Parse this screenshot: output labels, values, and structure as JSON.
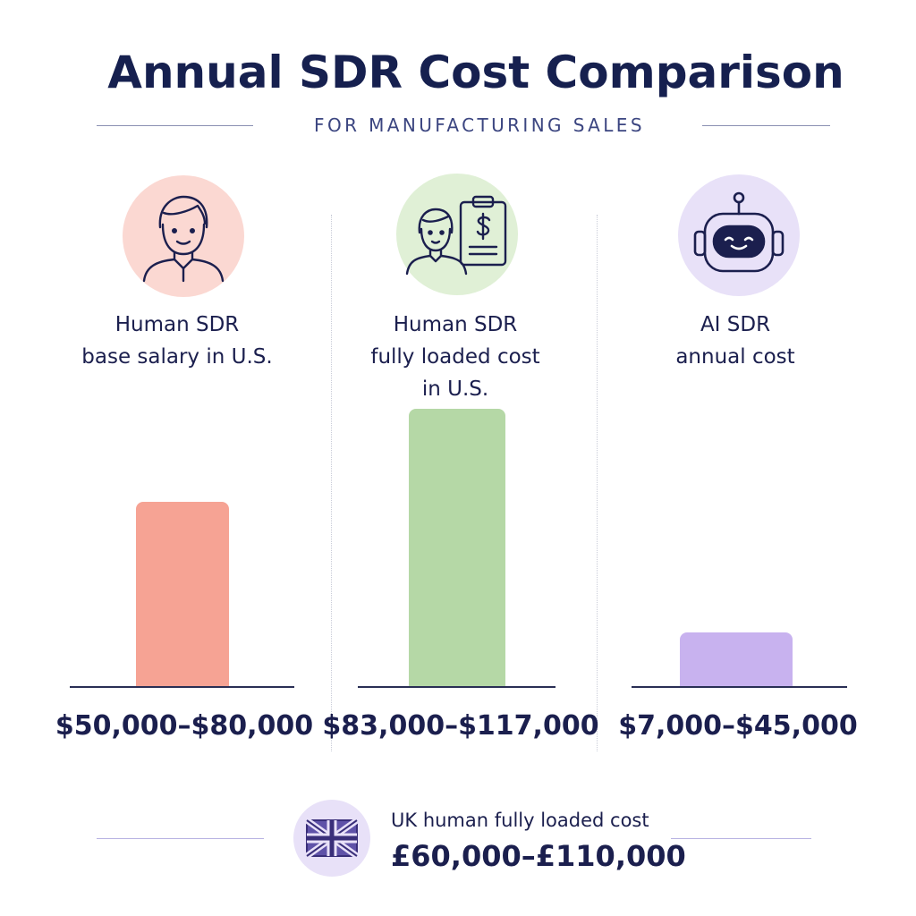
{
  "header": {
    "title": "Annual SDR Cost Comparison",
    "subtitle": "FOR MANUFACTURING SALES"
  },
  "chart_data": {
    "type": "bar",
    "title": "Annual SDR Cost Comparison",
    "subtitle": "FOR MANUFACTURING SALES",
    "categories": [
      "Human SDR\nbase salary in U.S.",
      "Human SDR\nfully loaded cost\nin U.S.",
      "AI SDR\nannual cost"
    ],
    "series": [
      {
        "low": [
          50000,
          83000,
          7000
        ],
        "high": [
          80000,
          117000,
          45000
        ],
        "value_labels": [
          "$50,000–$80,000",
          "$83,000–$117,000",
          "$7,000–$45,000"
        ],
        "colors": [
          "#f6a394",
          "#b5d8a6",
          "#c8b2ef"
        ]
      }
    ],
    "icons": [
      "person-icon",
      "person-invoice-icon",
      "robot-icon"
    ],
    "icon_colors": [
      "#fbd8d2",
      "#e0f0d6",
      "#e8e1f8"
    ],
    "footnote": {
      "label": "UK human fully loaded cost",
      "value": "£60,000–£110,000",
      "icon": "uk-flag-icon"
    },
    "grid": false,
    "legend": "none"
  }
}
